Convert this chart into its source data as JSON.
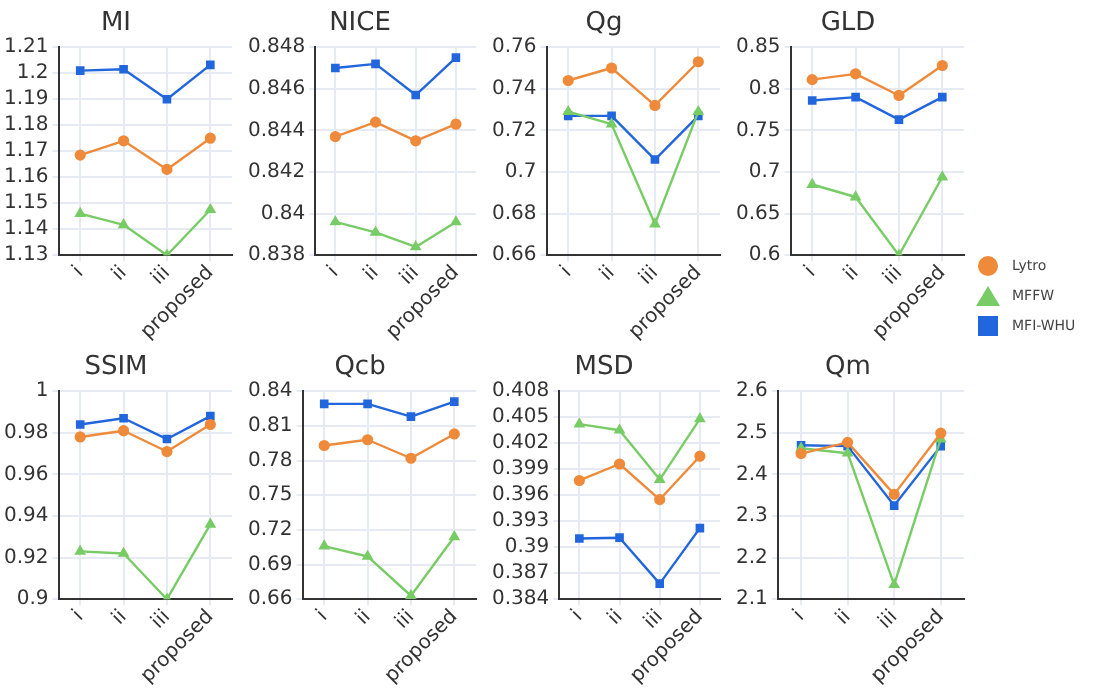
{
  "chart_data": [
    {
      "type": "line",
      "title": "MI",
      "categories": [
        "i",
        "ii",
        "iii",
        "proposed"
      ],
      "ylim": [
        1.13,
        1.21
      ],
      "yticks": [
        1.13,
        1.14,
        1.15,
        1.16,
        1.17,
        1.18,
        1.19,
        1.2,
        1.21
      ],
      "grid": true,
      "legend": "right",
      "series": [
        {
          "name": "Lytro",
          "color": "#ee8a3a",
          "marker": "circle",
          "values": [
            1.1685,
            1.174,
            1.163,
            1.175
          ]
        },
        {
          "name": "MFFW",
          "color": "#77cc66",
          "marker": "triangle",
          "values": [
            1.146,
            1.1417,
            1.13,
            1.1475
          ]
        },
        {
          "name": "MFI-WHU",
          "color": "#2266dd",
          "marker": "square",
          "values": [
            1.201,
            1.2015,
            1.19,
            1.2032
          ]
        }
      ]
    },
    {
      "type": "line",
      "title": "NICE",
      "categories": [
        "i",
        "ii",
        "iii",
        "proposed"
      ],
      "ylim": [
        0.838,
        0.848
      ],
      "yticks": [
        0.838,
        0.84,
        0.842,
        0.844,
        0.846,
        0.848
      ],
      "grid": true,
      "series": [
        {
          "color": "#ee8a3a",
          "marker": "circle",
          "values": [
            0.8437,
            0.8444,
            0.8435,
            0.8443
          ]
        },
        {
          "color": "#77cc66",
          "marker": "triangle",
          "values": [
            0.8396,
            0.8391,
            0.8384,
            0.8396
          ]
        },
        {
          "color": "#2266dd",
          "marker": "square",
          "values": [
            0.847,
            0.8472,
            0.8457,
            0.8475
          ]
        }
      ]
    },
    {
      "type": "line",
      "title": "Qg",
      "categories": [
        "i",
        "ii",
        "iii",
        "proposed"
      ],
      "ylim": [
        0.66,
        0.76
      ],
      "yticks": [
        0.66,
        0.68,
        0.7,
        0.72,
        0.74,
        0.76
      ],
      "grid": true,
      "series": [
        {
          "color": "#ee8a3a",
          "marker": "circle",
          "values": [
            0.744,
            0.75,
            0.732,
            0.753
          ]
        },
        {
          "color": "#77cc66",
          "marker": "triangle",
          "values": [
            0.729,
            0.723,
            0.675,
            0.729
          ]
        },
        {
          "color": "#2266dd",
          "marker": "square",
          "values": [
            0.727,
            0.727,
            0.706,
            0.727
          ]
        }
      ]
    },
    {
      "type": "line",
      "title": "GLD",
      "categories": [
        "i",
        "ii",
        "iii",
        "proposed"
      ],
      "ylim": [
        0.6,
        0.85
      ],
      "yticks": [
        0.6,
        0.65,
        0.7,
        0.75,
        0.8,
        0.85
      ],
      "grid": true,
      "series": [
        {
          "color": "#ee8a3a",
          "marker": "circle",
          "values": [
            0.811,
            0.818,
            0.792,
            0.828
          ]
        },
        {
          "color": "#77cc66",
          "marker": "triangle",
          "values": [
            0.685,
            0.67,
            0.6,
            0.694
          ]
        },
        {
          "color": "#2266dd",
          "marker": "square",
          "values": [
            0.786,
            0.79,
            0.763,
            0.79
          ]
        }
      ]
    },
    {
      "type": "line",
      "title": "SSIM",
      "categories": [
        "i",
        "ii",
        "iii",
        "proposed"
      ],
      "ylim": [
        0.9,
        1
      ],
      "yticks": [
        0.9,
        0.92,
        0.94,
        0.96,
        0.98,
        1
      ],
      "grid": true,
      "series": [
        {
          "color": "#ee8a3a",
          "marker": "circle",
          "values": [
            0.978,
            0.981,
            0.971,
            0.984
          ]
        },
        {
          "color": "#77cc66",
          "marker": "triangle",
          "values": [
            0.923,
            0.922,
            0.9,
            0.936
          ]
        },
        {
          "color": "#2266dd",
          "marker": "square",
          "values": [
            0.984,
            0.987,
            0.977,
            0.988
          ]
        }
      ]
    },
    {
      "type": "line",
      "title": "Qcb",
      "categories": [
        "i",
        "ii",
        "iii",
        "proposed"
      ],
      "ylim": [
        0.66,
        0.84
      ],
      "yticks": [
        0.66,
        0.69,
        0.72,
        0.75,
        0.78,
        0.81,
        0.84
      ],
      "grid": true,
      "series": [
        {
          "color": "#ee8a3a",
          "marker": "circle",
          "values": [
            0.793,
            0.798,
            0.782,
            0.803
          ]
        },
        {
          "color": "#77cc66",
          "marker": "triangle",
          "values": [
            0.706,
            0.697,
            0.663,
            0.714
          ]
        },
        {
          "color": "#2266dd",
          "marker": "square",
          "values": [
            0.829,
            0.829,
            0.818,
            0.831
          ]
        }
      ]
    },
    {
      "type": "line",
      "title": "MSD",
      "categories": [
        "i",
        "ii",
        "iii",
        "proposed"
      ],
      "ylim": [
        0.384,
        0.408
      ],
      "yticks": [
        0.384,
        0.387,
        0.39,
        0.393,
        0.396,
        0.399,
        0.402,
        0.405,
        0.408
      ],
      "grid": true,
      "series": [
        {
          "color": "#ee8a3a",
          "marker": "circle",
          "values": [
            0.3977,
            0.3996,
            0.3955,
            0.4005
          ]
        },
        {
          "color": "#77cc66",
          "marker": "triangle",
          "values": [
            0.4042,
            0.4035,
            0.3978,
            0.4048
          ]
        },
        {
          "color": "#2266dd",
          "marker": "square",
          "values": [
            0.391,
            0.3911,
            0.3858,
            0.3922
          ]
        }
      ]
    },
    {
      "type": "line",
      "title": "Qm",
      "categories": [
        "i",
        "ii",
        "iii",
        "proposed"
      ],
      "ylim": [
        2.1,
        2.6
      ],
      "yticks": [
        2.1,
        2.2,
        2.3,
        2.4,
        2.5,
        2.6
      ],
      "grid": true,
      "series": [
        {
          "color": "#ee8a3a",
          "marker": "circle",
          "values": [
            2.45,
            2.477,
            2.352,
            2.499
          ]
        },
        {
          "color": "#77cc66",
          "marker": "triangle",
          "values": [
            2.463,
            2.451,
            2.135,
            2.485
          ]
        },
        {
          "color": "#2266dd",
          "marker": "square",
          "values": [
            2.47,
            2.468,
            2.325,
            2.468
          ]
        }
      ]
    }
  ]
}
